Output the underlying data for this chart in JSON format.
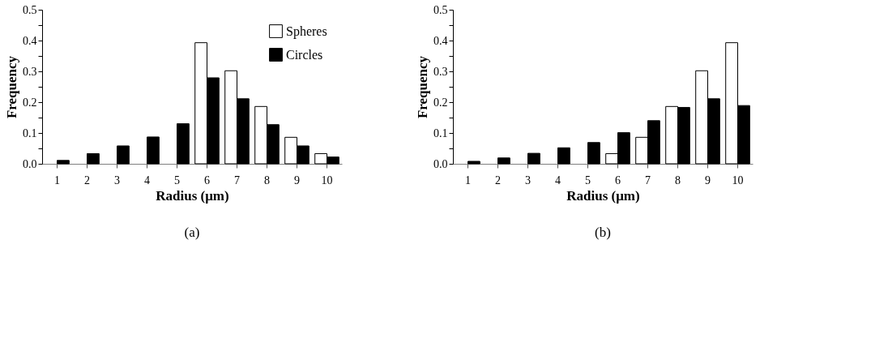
{
  "chart_data": [
    {
      "type": "bar",
      "categories": [
        "1",
        "2",
        "3",
        "4",
        "5",
        "6",
        "7",
        "8",
        "9",
        "10"
      ],
      "xlabel": "Radius (μm)",
      "ylabel": "Frequency",
      "ylim": [
        0,
        0.5
      ],
      "yticks": [
        {
          "value": 0,
          "label": "0.0"
        },
        {
          "value": 0.05,
          "label": null
        },
        {
          "value": 0.1,
          "label": "0.1"
        },
        {
          "value": 0.15,
          "label": null
        },
        {
          "value": 0.2,
          "label": "0.2"
        },
        {
          "value": 0.25,
          "label": null
        },
        {
          "value": 0.3,
          "label": "0.3"
        },
        {
          "value": 0.35,
          "label": null
        },
        {
          "value": 0.4,
          "label": "0.4"
        },
        {
          "value": 0.45,
          "label": null
        },
        {
          "value": 0.5,
          "label": "0.5"
        }
      ],
      "series": [
        {
          "name": "Spheres",
          "color": "#ffffff",
          "values": [
            null,
            null,
            null,
            null,
            null,
            0.393,
            0.302,
            0.186,
            0.086,
            0.033
          ]
        },
        {
          "name": "Circles",
          "color": "#000000",
          "values": [
            0.011,
            0.033,
            0.058,
            0.087,
            0.13,
            0.279,
            0.211,
            0.127,
            0.058,
            0.022
          ]
        }
      ],
      "legend": "top right",
      "grid": false,
      "annotations": [
        "(a)"
      ]
    },
    {
      "type": "bar",
      "categories": [
        "1",
        "2",
        "3",
        "4",
        "5",
        "6",
        "7",
        "8",
        "9",
        "10"
      ],
      "xlabel": "Radius (μm)",
      "ylabel": "Frequency",
      "ylim": [
        0,
        0.5
      ],
      "yticks": [
        {
          "value": 0,
          "label": "0.0"
        },
        {
          "value": 0.05,
          "label": null
        },
        {
          "value": 0.1,
          "label": "0.1"
        },
        {
          "value": 0.15,
          "label": null
        },
        {
          "value": 0.2,
          "label": "0.2"
        },
        {
          "value": 0.25,
          "label": null
        },
        {
          "value": 0.3,
          "label": "0.3"
        },
        {
          "value": 0.35,
          "label": null
        },
        {
          "value": 0.4,
          "label": "0.4"
        },
        {
          "value": 0.45,
          "label": null
        },
        {
          "value": 0.5,
          "label": "0.5"
        }
      ],
      "series": [
        {
          "color": "#ffffff",
          "values": [
            null,
            null,
            null,
            null,
            null,
            0.033,
            0.086,
            0.186,
            0.302,
            0.393
          ]
        },
        {
          "color": "#000000",
          "values": [
            0.008,
            0.019,
            0.034,
            0.052,
            0.069,
            0.101,
            0.14,
            0.183,
            0.211,
            0.189
          ]
        }
      ],
      "legend": false,
      "grid": false,
      "annotations": [
        "(b)"
      ]
    }
  ]
}
